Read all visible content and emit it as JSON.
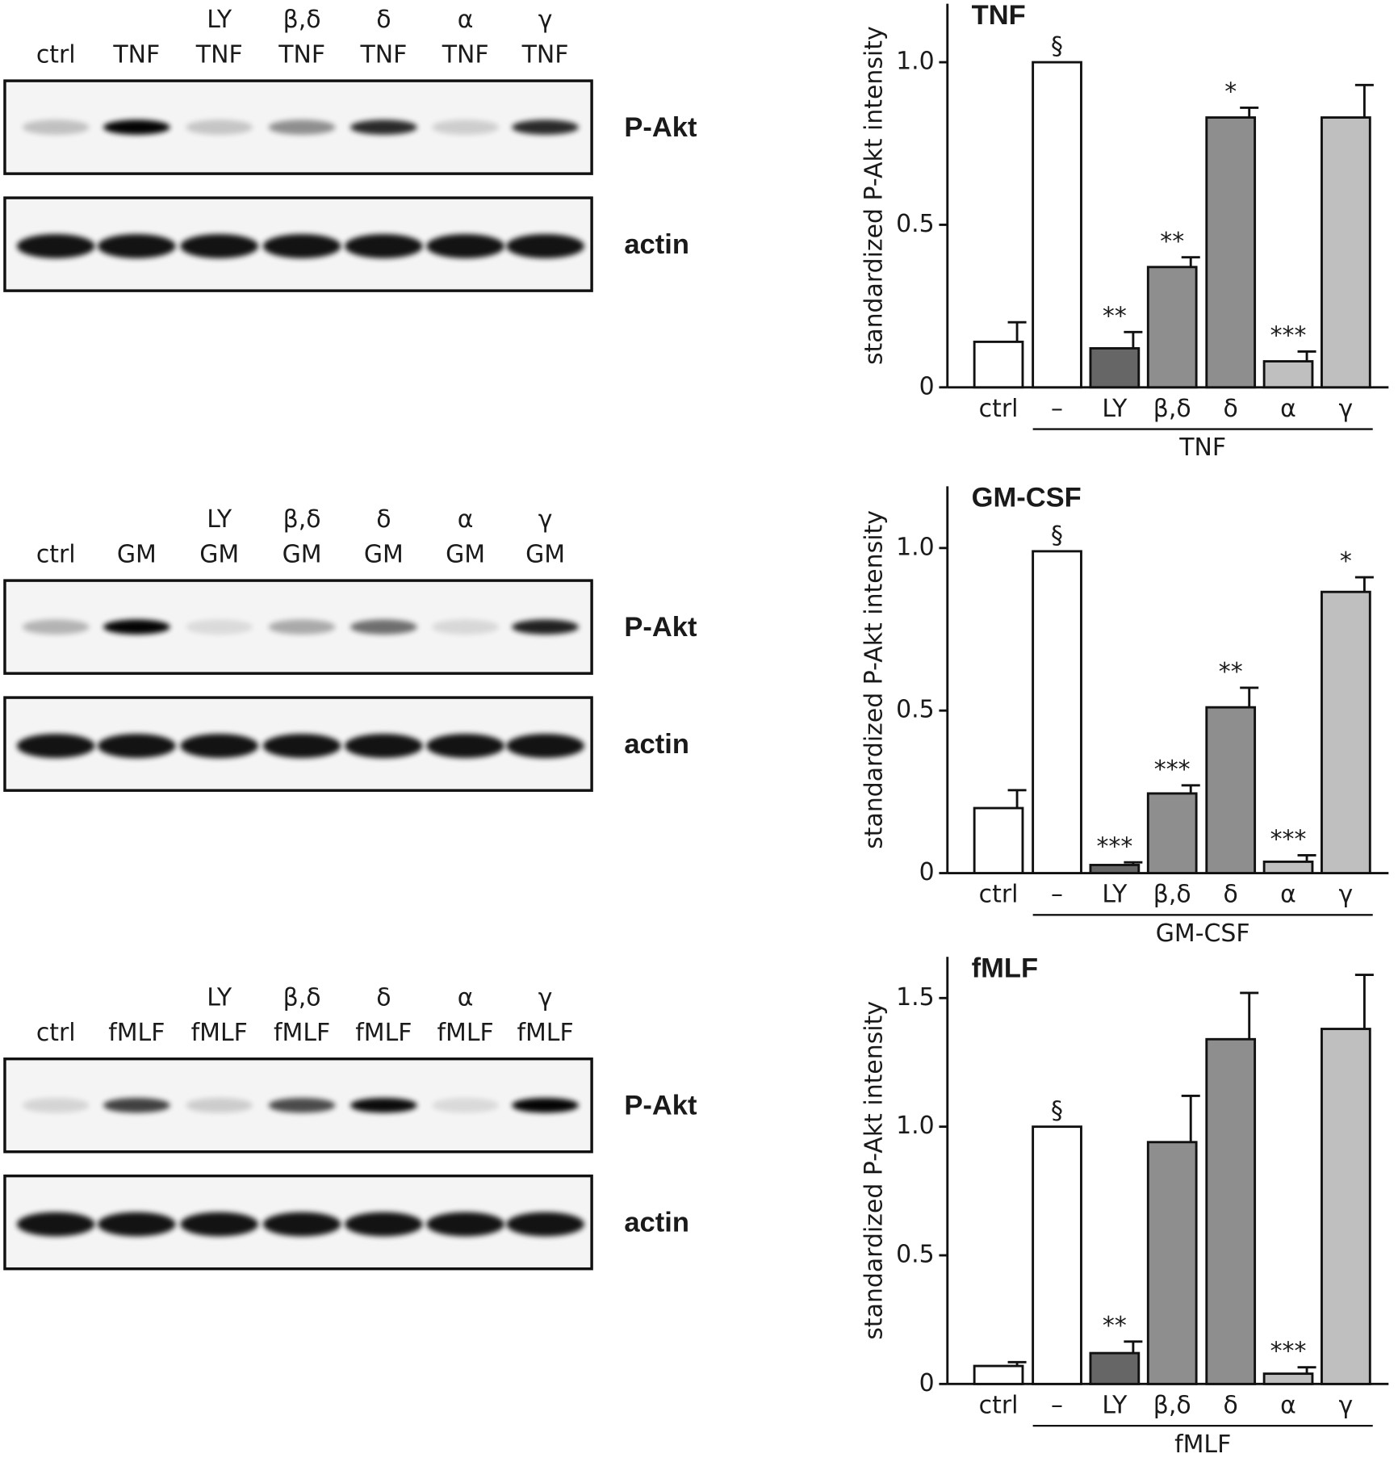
{
  "blots": [
    {
      "lanes": [
        [
          "ctrl"
        ],
        [
          "TNF"
        ],
        [
          "LY",
          "TNF"
        ],
        [
          "β,δ",
          "TNF"
        ],
        [
          "δ",
          "TNF"
        ],
        [
          "α",
          "TNF"
        ],
        [
          "γ",
          "TNF"
        ]
      ],
      "bands": [
        "P-Akt",
        "actin"
      ]
    },
    {
      "lanes": [
        [
          "ctrl"
        ],
        [
          "GM"
        ],
        [
          "LY",
          "GM"
        ],
        [
          "β,δ",
          "GM"
        ],
        [
          "δ",
          "GM"
        ],
        [
          "α",
          "GM"
        ],
        [
          "γ",
          "GM"
        ]
      ],
      "bands": [
        "P-Akt",
        "actin"
      ]
    },
    {
      "lanes": [
        [
          "ctrl"
        ],
        [
          "fMLF"
        ],
        [
          "LY",
          "fMLF"
        ],
        [
          "β,δ",
          "fMLF"
        ],
        [
          "δ",
          "fMLF"
        ],
        [
          "α",
          "fMLF"
        ],
        [
          "γ",
          "fMLF"
        ]
      ],
      "bands": [
        "P-Akt",
        "actin"
      ]
    }
  ],
  "chart_data": [
    {
      "type": "bar",
      "title": "TNF",
      "y_label": "standardized P-Akt intensity",
      "group_label": "TNF",
      "categories": [
        "ctrl",
        "–",
        "LY",
        "β,δ",
        "δ",
        "α",
        "γ"
      ],
      "values": [
        0.14,
        1.0,
        0.12,
        0.37,
        0.83,
        0.08,
        0.83
      ],
      "errors": [
        0.06,
        0,
        0.05,
        0.03,
        0.03,
        0.03,
        0.1
      ],
      "annotations": [
        null,
        "§",
        "**",
        "**",
        "*",
        "***",
        null
      ],
      "colors": [
        "#ffffff",
        "#ffffff",
        "#666666",
        "#8e8e8e",
        "#8e8e8e",
        "#bfbfbf",
        "#bfbfbf"
      ],
      "ylim": [
        0,
        1.18
      ],
      "yticks": [
        0,
        0.5,
        {
          "value": 1,
          "label": "1.0"
        }
      ]
    },
    {
      "type": "bar",
      "title": "GM-CSF",
      "y_label": "standardized P-Akt intensity",
      "group_label": "GM-CSF",
      "categories": [
        "ctrl",
        "–",
        "LY",
        "β,δ",
        "δ",
        "α",
        "γ"
      ],
      "values": [
        0.2,
        0.99,
        0.025,
        0.245,
        0.51,
        0.035,
        0.865
      ],
      "errors": [
        0.055,
        0,
        0.008,
        0.025,
        0.06,
        0.02,
        0.045
      ],
      "annotations": [
        null,
        "§",
        "***",
        "***",
        "**",
        "***",
        "*"
      ],
      "colors": [
        "#ffffff",
        "#ffffff",
        "#666666",
        "#8e8e8e",
        "#8e8e8e",
        "#bfbfbf",
        "#bfbfbf"
      ],
      "ylim": [
        0,
        1.19
      ],
      "yticks": [
        0,
        0.5,
        {
          "value": 1,
          "label": "1.0"
        }
      ]
    },
    {
      "type": "bar",
      "title": "fMLF",
      "y_label": "standardized P-Akt intensity",
      "group_label": "fMLF",
      "categories": [
        "ctrl",
        "–",
        "LY",
        "β,δ",
        "δ",
        "α",
        "γ"
      ],
      "values": [
        0.07,
        1.0,
        0.12,
        0.94,
        1.34,
        0.04,
        1.38
      ],
      "errors": [
        0.015,
        0,
        0.045,
        0.18,
        0.18,
        0.025,
        0.21
      ],
      "annotations": [
        null,
        "§",
        "**",
        null,
        null,
        "***",
        null
      ],
      "colors": [
        "#ffffff",
        "#ffffff",
        "#666666",
        "#8e8e8e",
        "#8e8e8e",
        "#bfbfbf",
        "#bfbfbf"
      ],
      "ylim": [
        0,
        1.66
      ],
      "yticks": [
        0,
        0.5,
        {
          "value": 1,
          "label": "1.0"
        },
        1.5
      ]
    }
  ]
}
